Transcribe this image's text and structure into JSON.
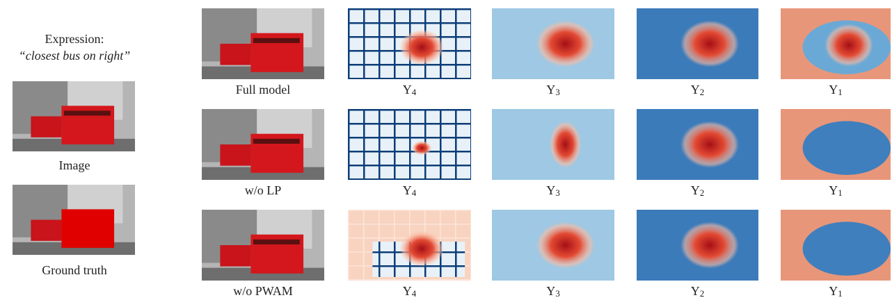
{
  "expression": {
    "heading": "Expression:",
    "text": "“closest bus on right”"
  },
  "left": {
    "image_caption": "Image",
    "gt_caption": "Ground truth"
  },
  "rows": [
    {
      "label": "Full model",
      "maps": [
        {
          "symbol": "Y",
          "sub": "4"
        },
        {
          "symbol": "Y",
          "sub": "3"
        },
        {
          "symbol": "Y",
          "sub": "2"
        },
        {
          "symbol": "Y",
          "sub": "1"
        }
      ]
    },
    {
      "label": "w/o LP",
      "maps": [
        {
          "symbol": "Y",
          "sub": "4"
        },
        {
          "symbol": "Y",
          "sub": "3"
        },
        {
          "symbol": "Y",
          "sub": "2"
        },
        {
          "symbol": "Y",
          "sub": "1"
        }
      ]
    },
    {
      "label": "w/o PWAM",
      "maps": [
        {
          "symbol": "Y",
          "sub": "4"
        },
        {
          "symbol": "Y",
          "sub": "3"
        },
        {
          "symbol": "Y",
          "sub": "2"
        },
        {
          "symbol": "Y",
          "sub": "1"
        }
      ]
    }
  ]
}
